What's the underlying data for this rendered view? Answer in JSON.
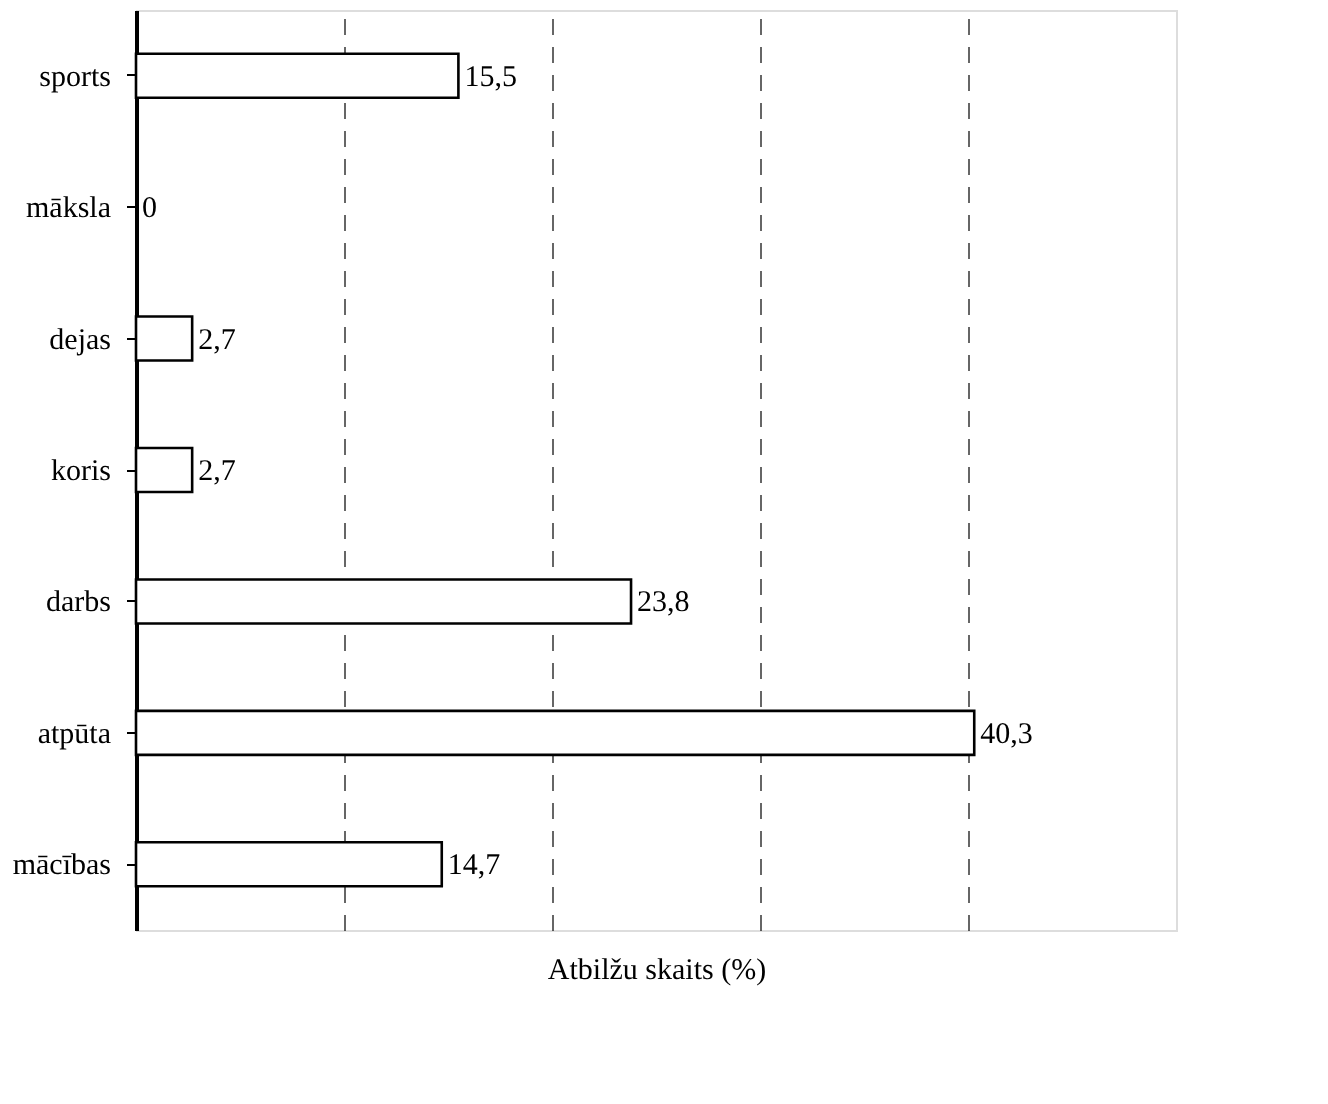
{
  "chart_data": {
    "type": "bar",
    "orientation": "horizontal",
    "categories": [
      "sports",
      "māksla",
      "dejas",
      "koris",
      "darbs",
      "atpūta",
      "mācības"
    ],
    "values": [
      15.5,
      0,
      2.7,
      2.7,
      23.8,
      40.3,
      14.7
    ],
    "value_labels": [
      "15,5",
      "0",
      "2,7",
      "2,7",
      "23,8",
      "40,3",
      "14,7"
    ],
    "color": "#ffffff",
    "xlabel": "Atbilžu skaits (%)",
    "xlim": [
      0,
      50
    ],
    "xticks": [
      {
        "value": 10,
        "label": null
      },
      {
        "value": 20,
        "label": null
      },
      {
        "value": 30,
        "label": null
      },
      {
        "value": 40,
        "label": null
      }
    ],
    "tick_labels": "y",
    "grid": "x"
  }
}
